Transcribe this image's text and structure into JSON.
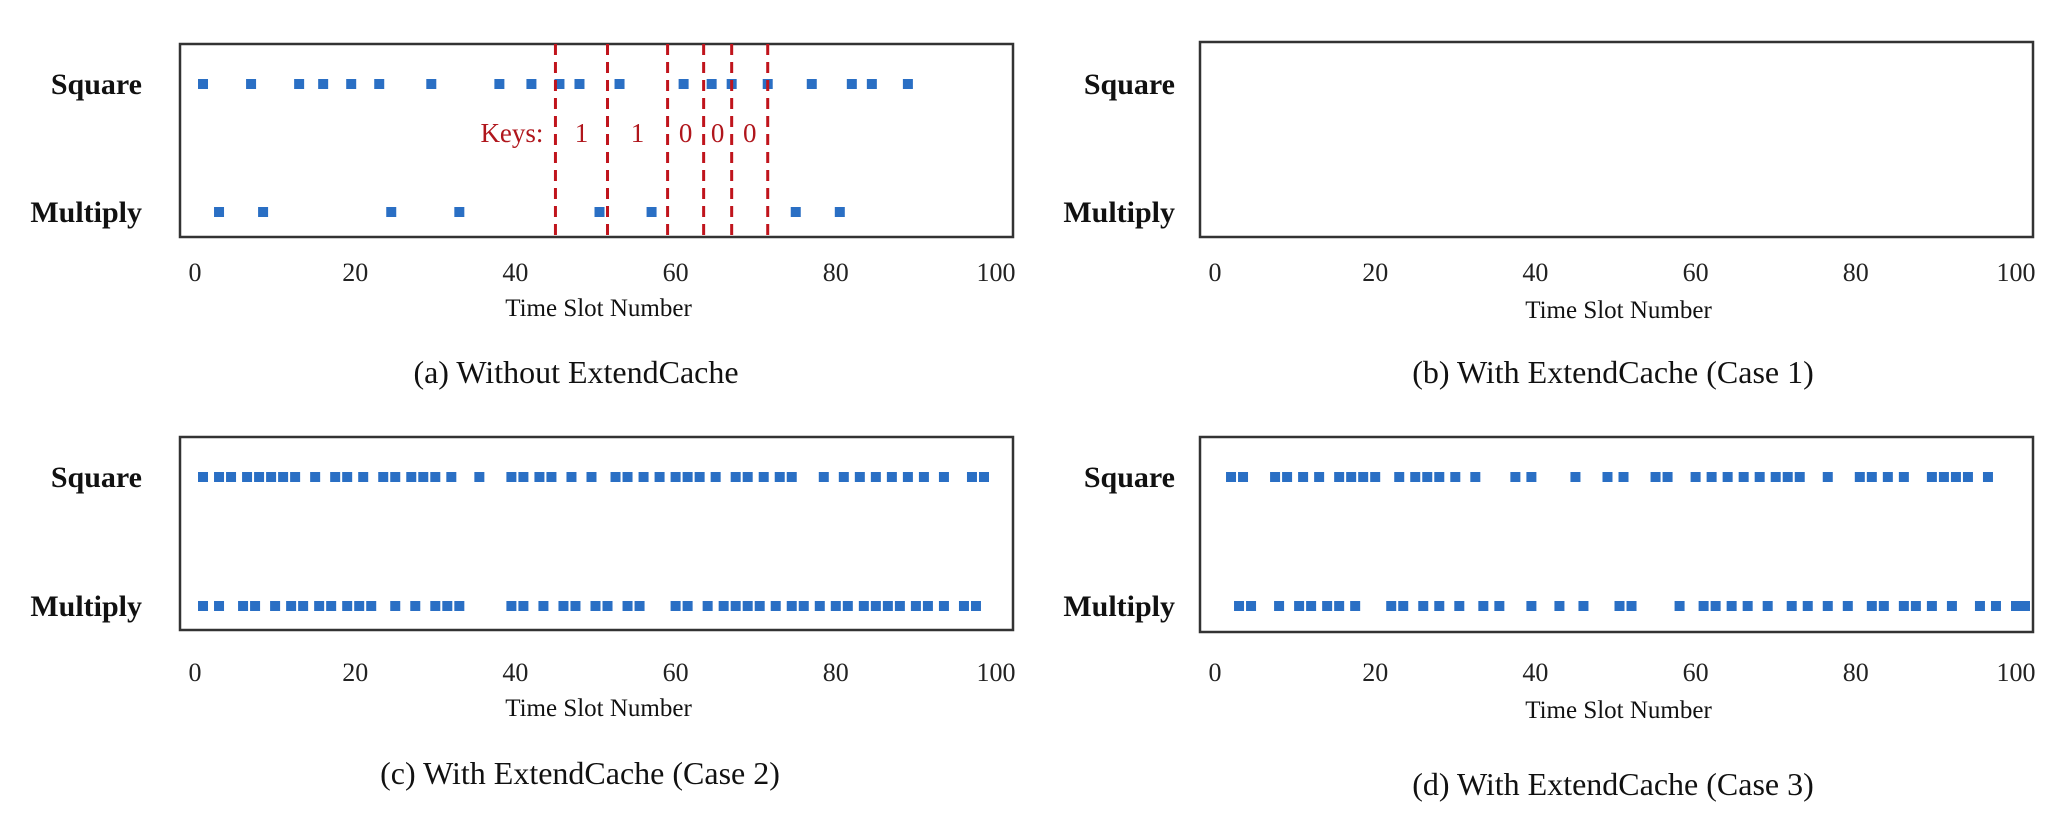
{
  "chart_data": [
    {
      "type": "scatter",
      "caption": "(a) Without ExtendCache",
      "xlabel": "Time Slot Number",
      "xlim": [
        0,
        100
      ],
      "xticks": [
        0,
        20,
        40,
        60,
        80,
        100
      ],
      "rows": [
        "Square",
        "Multiply"
      ],
      "series": [
        {
          "name": "Square",
          "x": [
            1,
            7,
            13,
            16,
            19.5,
            23,
            29.5,
            38,
            42,
            45.5,
            48,
            53,
            61,
            64.5,
            67,
            71.5,
            77,
            82,
            84.5,
            89
          ]
        },
        {
          "name": "Multiply",
          "x": [
            3,
            8.5,
            24.5,
            33,
            50.5,
            57,
            75,
            80.5
          ]
        }
      ],
      "annotations": {
        "key_label": "Keys:",
        "boundaries": [
          45,
          51.5,
          59,
          63.5,
          67,
          71.5
        ],
        "bits": [
          "1",
          "1",
          "0",
          "0",
          "0"
        ]
      }
    },
    {
      "type": "scatter",
      "caption": "(b) With ExtendCache (Case 1)",
      "xlabel": "Time Slot Number",
      "xlim": [
        0,
        100
      ],
      "xticks": [
        0,
        20,
        40,
        60,
        80,
        100
      ],
      "rows": [
        "Square",
        "Multiply"
      ],
      "series": [
        {
          "name": "Square",
          "x": []
        },
        {
          "name": "Multiply",
          "x": []
        }
      ]
    },
    {
      "type": "scatter",
      "caption": "(c) With ExtendCache (Case 2)",
      "xlabel": "Time Slot Number",
      "xlim": [
        0,
        100
      ],
      "xticks": [
        0,
        20,
        40,
        60,
        80,
        100
      ],
      "rows": [
        "Square",
        "Multiply"
      ],
      "series": [
        {
          "name": "Square",
          "x": [
            1,
            3,
            4.5,
            6.5,
            8,
            9.5,
            11,
            12.5,
            15,
            17.5,
            19,
            21,
            23.5,
            25,
            27,
            28.5,
            30,
            32,
            35.5,
            39.5,
            41,
            43,
            44.5,
            47,
            49.5,
            52.5,
            54,
            56,
            58,
            60,
            61.5,
            63,
            65,
            67.5,
            69,
            71,
            73,
            74.5,
            78.5,
            81,
            83,
            85,
            87,
            89,
            91,
            93.5,
            97,
            98.5
          ]
        },
        {
          "name": "Multiply",
          "x": [
            1,
            3,
            6,
            7.5,
            10,
            12,
            13.5,
            15.5,
            17,
            19,
            20.5,
            22,
            25,
            27.5,
            30,
            31.5,
            33,
            39.5,
            41,
            43.5,
            46,
            47.5,
            50,
            51.5,
            54,
            55.5,
            60,
            61.5,
            64,
            66,
            67.5,
            69,
            70.5,
            72.5,
            74.5,
            76,
            78,
            80,
            81.5,
            83.5,
            85,
            86.5,
            88,
            90,
            91.5,
            93.5,
            96,
            97.5
          ]
        }
      ]
    },
    {
      "type": "scatter",
      "caption": "(d) With ExtendCache (Case 3)",
      "xlabel": "Time Slot Number",
      "xlim": [
        0,
        100
      ],
      "xticks": [
        0,
        20,
        40,
        60,
        80,
        100
      ],
      "rows": [
        "Square",
        "Multiply"
      ],
      "series": [
        {
          "name": "Square",
          "x": [
            2,
            3.5,
            7.5,
            9,
            11,
            13,
            15.5,
            17,
            18.5,
            20,
            23,
            25,
            26.5,
            28,
            30,
            32.5,
            37.5,
            39.5,
            45,
            49,
            51,
            55,
            56.5,
            60,
            62,
            64,
            66,
            68,
            70,
            71.5,
            73,
            76.5,
            80.5,
            82,
            84,
            86,
            89.5,
            91,
            92.5,
            94,
            96.5
          ]
        },
        {
          "name": "Multiply",
          "x": [
            3,
            4.5,
            8,
            10.5,
            12,
            14,
            15.5,
            17.5,
            22,
            23.5,
            26,
            28,
            30.5,
            33.5,
            35.5,
            39.5,
            43,
            46,
            50.5,
            52,
            58,
            61,
            62.5,
            64.5,
            66.5,
            69,
            72,
            74,
            76.5,
            79,
            82,
            83.5,
            86,
            87.5,
            89.5,
            92,
            95.5,
            97.5,
            100,
            102.5
          ]
        }
      ]
    }
  ]
}
